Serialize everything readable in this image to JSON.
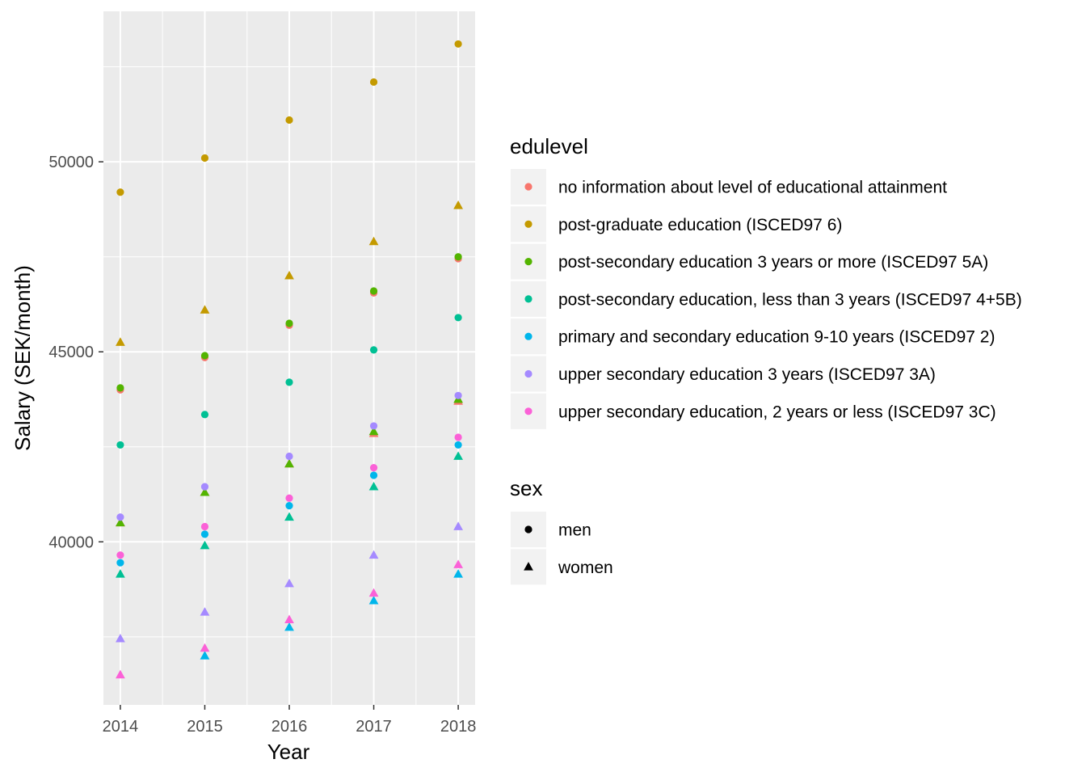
{
  "chart_data": {
    "type": "scatter",
    "xlabel": "Year",
    "ylabel": "Salary (SEK/month)",
    "xlim": [
      2013.8,
      2018.2
    ],
    "ylim": [
      35710,
      53960
    ],
    "x_ticks": [
      2014,
      2015,
      2016,
      2017,
      2018
    ],
    "y_ticks": [
      40000,
      45000,
      50000
    ],
    "x_tick_labels": [
      "2014",
      "2015",
      "2016",
      "2017",
      "2018"
    ],
    "y_tick_labels": [
      "40000",
      "45000",
      "50000"
    ],
    "grid": true,
    "legend_placement": "right",
    "color_legend": {
      "title": "edulevel",
      "entries": [
        {
          "label": "no information about level of educational attainment",
          "color": "#F8766D"
        },
        {
          "label": "post-graduate education (ISCED97 6)",
          "color": "#C49A00"
        },
        {
          "label": "post-secondary education 3 years or more (ISCED97 5A)",
          "color": "#53B400"
        },
        {
          "label": "post-secondary education, less than 3 years (ISCED97 4+5B)",
          "color": "#00C094"
        },
        {
          "label": "primary and secondary education 9-10 years (ISCED97 2)",
          "color": "#00B6EB"
        },
        {
          "label": "upper secondary education 3 years (ISCED97 3A)",
          "color": "#A58AFF"
        },
        {
          "label": "upper secondary education, 2 years or less (ISCED97 3C)",
          "color": "#FB61D7"
        }
      ]
    },
    "shape_legend": {
      "title": "sex",
      "entries": [
        {
          "label": "men",
          "shape": "circle"
        },
        {
          "label": "women",
          "shape": "triangle"
        }
      ]
    },
    "x": [
      2014,
      2015,
      2016,
      2017,
      2018
    ],
    "series": [
      {
        "edulevel": 0,
        "sex": "men",
        "values": [
          44000,
          44850,
          45700,
          46550,
          47450
        ]
      },
      {
        "edulevel": 0,
        "sex": "women",
        "values": [
          40500,
          41300,
          42050,
          42850,
          43700
        ]
      },
      {
        "edulevel": 1,
        "sex": "men",
        "values": [
          49200,
          50100,
          51100,
          52100,
          53100
        ]
      },
      {
        "edulevel": 1,
        "sex": "women",
        "values": [
          45250,
          46100,
          47000,
          47900,
          48850
        ]
      },
      {
        "edulevel": 2,
        "sex": "men",
        "values": [
          44050,
          44900,
          45750,
          46600,
          47500
        ]
      },
      {
        "edulevel": 2,
        "sex": "women",
        "values": [
          40500,
          41300,
          42050,
          42900,
          43750
        ]
      },
      {
        "edulevel": 3,
        "sex": "men",
        "values": [
          42550,
          43350,
          44200,
          45050,
          45900
        ]
      },
      {
        "edulevel": 3,
        "sex": "women",
        "values": [
          39150,
          39900,
          40650,
          41450,
          42250
        ]
      },
      {
        "edulevel": 4,
        "sex": "men",
        "values": [
          39450,
          40200,
          40950,
          41750,
          42550
        ]
      },
      {
        "edulevel": 4,
        "sex": "women",
        "values": null,
        "values_women": [
          null,
          37000,
          37750,
          38450,
          39150
        ]
      },
      {
        "edulevel": 5,
        "sex": "men",
        "values": [
          40650,
          41450,
          42250,
          43050,
          43850
        ]
      },
      {
        "edulevel": 5,
        "sex": "women",
        "values": [
          37450,
          38150,
          38900,
          39650,
          40400
        ]
      },
      {
        "edulevel": 6,
        "sex": "men",
        "values": [
          39650,
          40400,
          41150,
          41950,
          42750
        ]
      },
      {
        "edulevel": 6,
        "sex": "women",
        "values": [
          36500,
          37200,
          37950,
          38650,
          39400
        ]
      }
    ]
  }
}
